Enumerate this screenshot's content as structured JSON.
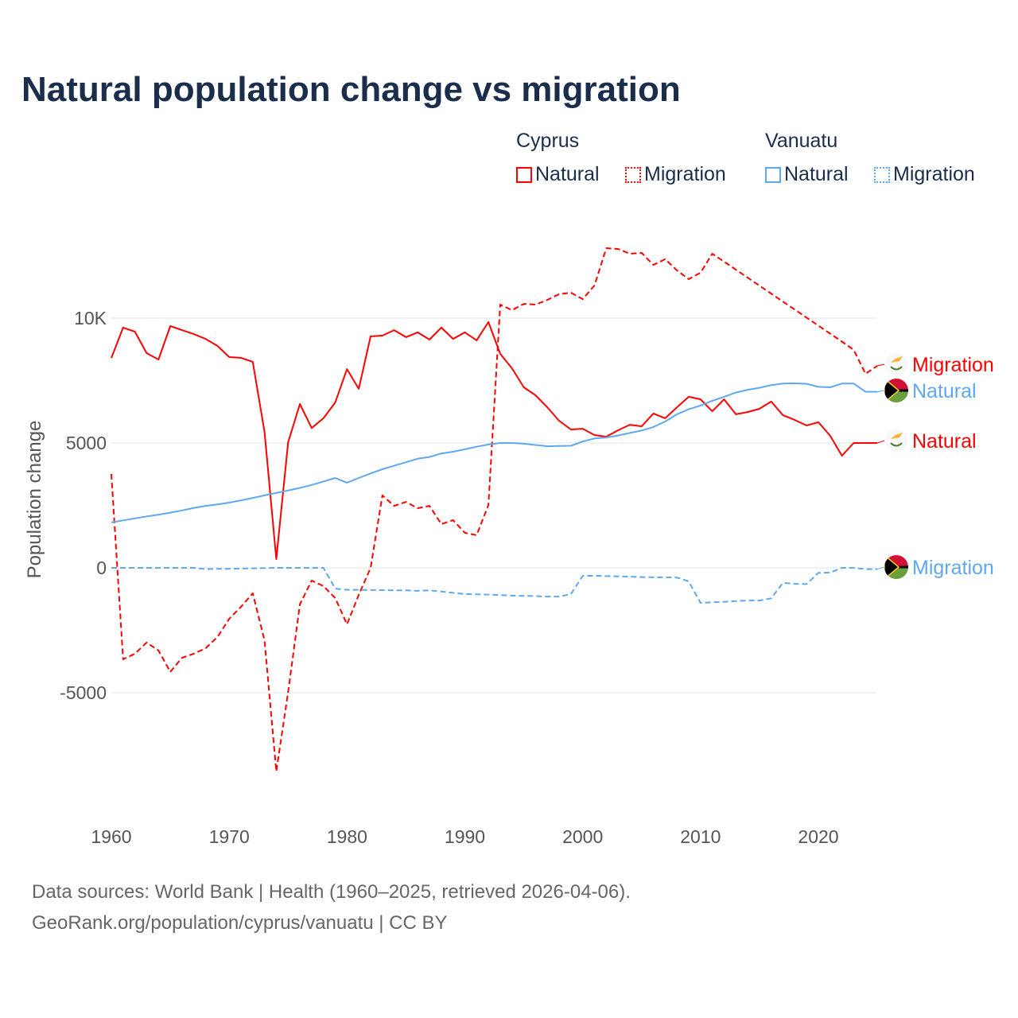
{
  "chart_data": {
    "type": "line",
    "title": "Natural population change vs migration",
    "xlabel": "",
    "ylabel": "Population change",
    "xlim": [
      1960,
      2025
    ],
    "ylim": [
      -9500,
      14000
    ],
    "x_ticks": [
      "1960",
      "1970",
      "1980",
      "1990",
      "2000",
      "2010",
      "2020"
    ],
    "y_ticks": [
      {
        "value": 10000,
        "label": "10K"
      },
      {
        "value": 5000,
        "label": "5000"
      },
      {
        "value": 0,
        "label": "0"
      },
      {
        "value": -5000,
        "label": "-5000"
      }
    ],
    "grid": true,
    "legend_placement": "top-right",
    "legend": {
      "groups": [
        {
          "name": "Cyprus",
          "items": [
            "Natural",
            "Migration"
          ]
        },
        {
          "name": "Vanuatu",
          "items": [
            "Natural",
            "Migration"
          ]
        }
      ]
    },
    "x": [
      1960,
      1961,
      1962,
      1963,
      1964,
      1965,
      1966,
      1967,
      1968,
      1969,
      1970,
      1971,
      1972,
      1973,
      1974,
      1975,
      1976,
      1977,
      1978,
      1979,
      1980,
      1981,
      1982,
      1983,
      1984,
      1985,
      1986,
      1987,
      1988,
      1989,
      1990,
      1991,
      1992,
      1993,
      1994,
      1995,
      1996,
      1997,
      1998,
      1999,
      2000,
      2001,
      2002,
      2003,
      2004,
      2005,
      2006,
      2007,
      2008,
      2009,
      2010,
      2011,
      2012,
      2013,
      2014,
      2015,
      2016,
      2017,
      2018,
      2019,
      2020,
      2021,
      2022,
      2023,
      2024,
      2025
    ],
    "series": [
      {
        "name": "Cyprus Natural",
        "country": "Cyprus",
        "kind": "Natural",
        "color": "#ff0000",
        "dashed": false,
        "end_label": "Natural",
        "values": [
          8400,
          9620,
          9460,
          8600,
          8340,
          9680,
          9520,
          9360,
          9170,
          8890,
          8440,
          8410,
          8250,
          5450,
          350,
          5030,
          6560,
          5600,
          5990,
          6620,
          7960,
          7170,
          9270,
          9300,
          9520,
          9240,
          9430,
          9140,
          9620,
          9170,
          9430,
          9110,
          9840,
          8570,
          7990,
          7230,
          6910,
          6430,
          5890,
          5540,
          5570,
          5320,
          5250,
          5510,
          5730,
          5670,
          6180,
          5990,
          6430,
          6850,
          6750,
          6270,
          6750,
          6150,
          6240,
          6370,
          6660,
          6110,
          5920,
          5700,
          5830,
          5290,
          4490,
          5000,
          5000,
          5000
        ]
      },
      {
        "name": "Cyprus Migration",
        "country": "Cyprus",
        "kind": "Migration",
        "color": "#ff0000",
        "dashed": true,
        "end_label": "Migration",
        "values": [
          3760,
          -3660,
          -3440,
          -2990,
          -3310,
          -4170,
          -3600,
          -3440,
          -3220,
          -2770,
          -2040,
          -1560,
          -1020,
          -2900,
          -8150,
          -4970,
          -1460,
          -510,
          -730,
          -1210,
          -2260,
          -1080,
          0,
          2900,
          2480,
          2640,
          2390,
          2480,
          1750,
          1910,
          1400,
          1310,
          2520,
          10540,
          10320,
          10570,
          10540,
          10730,
          10960,
          11020,
          10760,
          11310,
          12800,
          12770,
          12580,
          12610,
          12130,
          12360,
          11910,
          11560,
          11820,
          12580,
          12260,
          11940,
          11620,
          11300,
          10980,
          10660,
          10340,
          10020,
          9700,
          9380,
          9060,
          8730,
          7770,
          8090
        ]
      },
      {
        "name": "Vanuatu Natural",
        "country": "Vanuatu",
        "kind": "Natural",
        "color": "#5ea8ee",
        "dashed": false,
        "end_label": "Natural",
        "values": [
          1820,
          1900,
          1980,
          2060,
          2130,
          2210,
          2300,
          2400,
          2480,
          2540,
          2610,
          2700,
          2800,
          2900,
          3000,
          3100,
          3200,
          3320,
          3460,
          3600,
          3410,
          3600,
          3780,
          3950,
          4090,
          4230,
          4370,
          4440,
          4580,
          4650,
          4750,
          4850,
          4940,
          5000,
          5000,
          4970,
          4920,
          4870,
          4880,
          4890,
          5060,
          5180,
          5220,
          5300,
          5400,
          5500,
          5640,
          5860,
          6150,
          6350,
          6500,
          6690,
          6850,
          7020,
          7130,
          7210,
          7320,
          7380,
          7390,
          7370,
          7250,
          7230,
          7380,
          7380,
          7050,
          7050
        ]
      },
      {
        "name": "Vanuatu Migration",
        "country": "Vanuatu",
        "kind": "Migration",
        "color": "#5ea8ee",
        "dashed": true,
        "end_label": "Migration",
        "values": [
          0,
          0,
          0,
          0,
          0,
          0,
          0,
          0,
          -50,
          -40,
          -40,
          -30,
          -20,
          -10,
          0,
          0,
          0,
          0,
          0,
          -830,
          -880,
          -880,
          -890,
          -890,
          -900,
          -900,
          -920,
          -900,
          -950,
          -1000,
          -1050,
          -1060,
          -1070,
          -1090,
          -1110,
          -1120,
          -1130,
          -1150,
          -1150,
          -1050,
          -320,
          -320,
          -330,
          -340,
          -350,
          -370,
          -380,
          -380,
          -390,
          -540,
          -1400,
          -1380,
          -1360,
          -1330,
          -1310,
          -1310,
          -1220,
          -600,
          -640,
          -650,
          -200,
          -190,
          0,
          0,
          -50,
          -50
        ]
      }
    ]
  },
  "footer": {
    "line1": "Data sources: World Bank | Health (1960–2025, retrieved 2026-04-06).",
    "line2": "GeoRank.org/population/cyprus/vanuatu | CC BY"
  }
}
